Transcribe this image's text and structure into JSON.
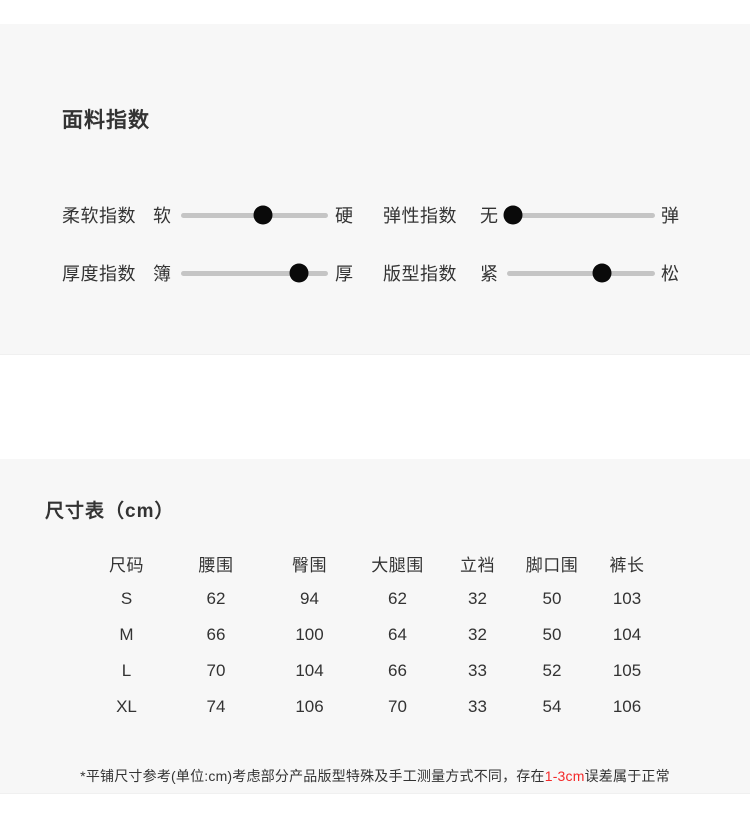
{
  "fabric_index": {
    "title": "面料指数",
    "sliders": [
      {
        "label": "柔软指数",
        "min": "软",
        "max": "硬",
        "position_pct": 56
      },
      {
        "label": "弹性指数",
        "min": "无",
        "max": "弹",
        "position_pct": 4
      },
      {
        "label": "厚度指数",
        "min": "簿",
        "max": "厚",
        "position_pct": 80
      },
      {
        "label": "版型指数",
        "min": "紧",
        "max": "松",
        "position_pct": 64
      }
    ]
  },
  "size_chart": {
    "title": "尺寸表（cm）",
    "columns": [
      "尺码",
      "腰围",
      "臀围",
      "大腿围",
      "立裆",
      "脚口围",
      "裤长"
    ],
    "rows": [
      {
        "size": "S",
        "values": [
          62,
          94,
          62,
          32,
          50,
          103
        ]
      },
      {
        "size": "M",
        "values": [
          66,
          100,
          64,
          32,
          50,
          104
        ]
      },
      {
        "size": "L",
        "values": [
          70,
          104,
          66,
          33,
          52,
          105
        ]
      },
      {
        "size": "XL",
        "values": [
          74,
          106,
          70,
          33,
          54,
          106
        ]
      }
    ],
    "footnote": {
      "prefix": "*平铺尺寸参考(单位:cm)考虑部分产品版型特殊及手工测量方式不同，存在",
      "highlight": "1-3cm",
      "suffix": "误差属于正常"
    }
  },
  "colors": {
    "accent_red": "#f42a2a",
    "section_bg": "#f7f7f7",
    "track_gray": "#c5c5c5",
    "dot_black": "#0a0a0a"
  }
}
